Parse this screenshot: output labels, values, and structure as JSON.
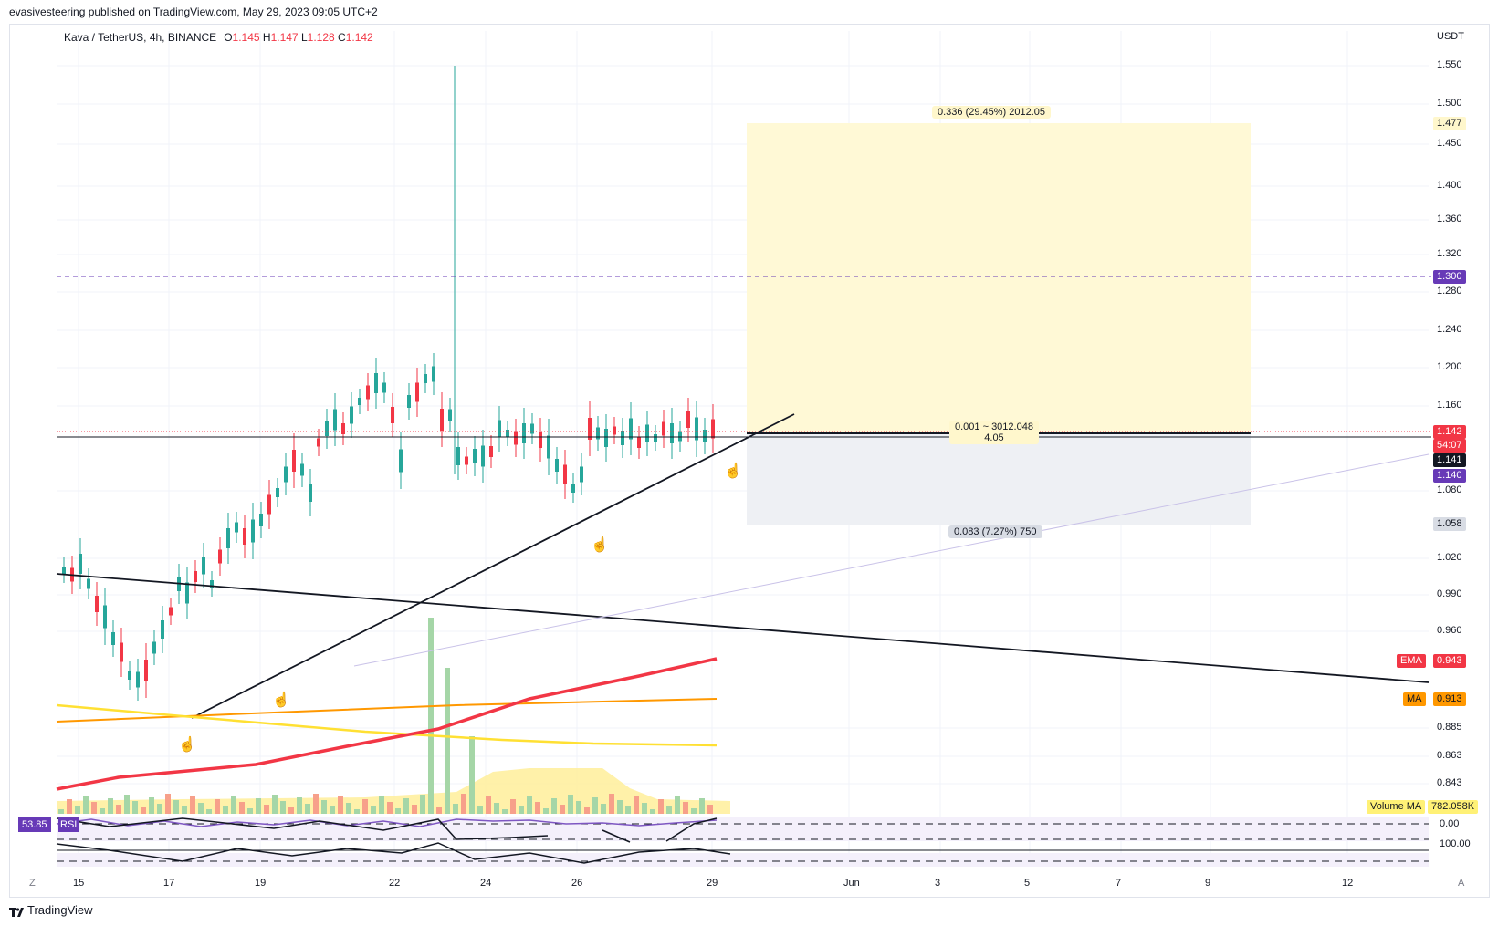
{
  "header": {
    "published": "evasivesteering published on TradingView.com, May 29, 2023 09:05 UTC+2"
  },
  "legend": {
    "symbol": "Kava / TetherUS, 4h, BINANCE",
    "open_label": "O",
    "open": "1.145",
    "high_label": "H",
    "high": "1.147",
    "low_label": "L",
    "low": "1.128",
    "close_label": "C",
    "close": "1.142"
  },
  "price_axis": {
    "currency": "USDT",
    "ticks": [
      "1.550",
      "1.500",
      "1.450",
      "1.400",
      "1.360",
      "1.320",
      "1.280",
      "1.240",
      "1.200",
      "1.160",
      "1.080",
      "1.020",
      "0.990",
      "0.960",
      "0.885",
      "0.863",
      "0.843"
    ],
    "tag_1477": "1.477",
    "tag_1300": "1.300",
    "tag_last": "1.142",
    "countdown": "54:07",
    "tag_1141": "1.141",
    "tag_1140": "1.140",
    "tag_1058": "1.058",
    "ema_label": "EMA",
    "ema_value": "0.943",
    "ma_label": "MA",
    "ma_value": "0.913",
    "volma_label": "Volume MA",
    "volma_value": "782.058K",
    "rsi_tick_0": "0.00",
    "rsi_tick_100": "100.00"
  },
  "time_axis": [
    "15",
    "17",
    "19",
    "22",
    "24",
    "26",
    "29",
    "Jun",
    "3",
    "5",
    "7",
    "9",
    "12"
  ],
  "position": {
    "target_label": "0.336 (29.45%) 2012.05",
    "entry_label_1": "0.001 ~ 3012.048",
    "entry_label_2": "4.05",
    "stop_label": "0.083 (7.27%) 750"
  },
  "rsi": {
    "value": "53.85",
    "label": "RSI"
  },
  "corner_buttons": {
    "left": "Z",
    "right": "A"
  },
  "footer": {
    "brand": "TradingView"
  },
  "colors": {
    "up": "#26a69a",
    "down": "#f23645",
    "ema": "#f23645",
    "ma": "#ff9800",
    "yellow_ma": "#ffe033",
    "target_zone": "#fff9d6",
    "stop_zone": "#eef0f4",
    "purple": "#673ab7"
  }
}
